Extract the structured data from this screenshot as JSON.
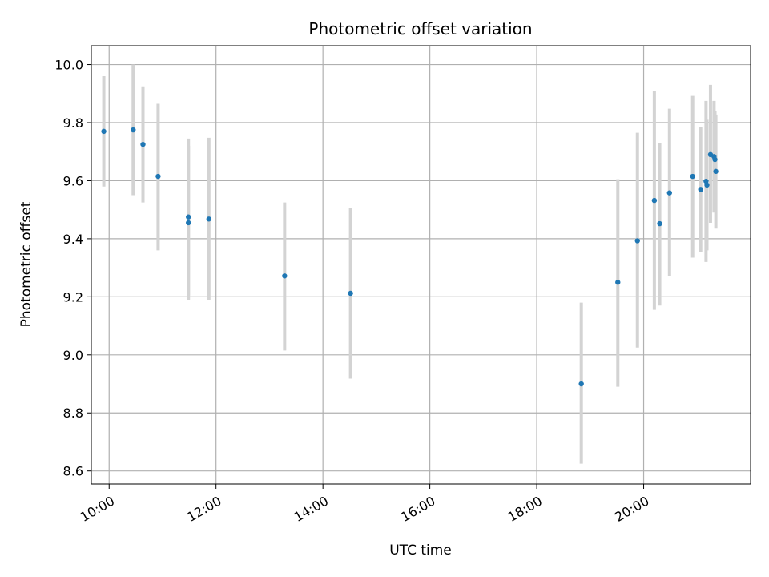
{
  "chart_data": {
    "type": "scatter",
    "title": "Photometric offset variation",
    "xlabel": "UTC time",
    "ylabel": "Photometric offset",
    "grid": true,
    "xlim": [
      "09:40",
      "22:00"
    ],
    "ylim": [
      8.555,
      10.065
    ],
    "xticks": [
      "10:00",
      "12:00",
      "14:00",
      "16:00",
      "18:00",
      "20:00"
    ],
    "yticks": [
      "8.6",
      "8.8",
      "9.0",
      "9.2",
      "9.4",
      "9.6",
      "9.8",
      "10.0"
    ],
    "colors": {
      "point": "#1f77b4",
      "errorbar": "#d3d3d3",
      "grid": "#b0b0b0"
    },
    "series": [
      {
        "points": [
          {
            "x": "09:54",
            "y": 9.77,
            "ylow": 9.58,
            "yhigh": 9.96
          },
          {
            "x": "10:27",
            "y": 9.775,
            "ylow": 9.55,
            "yhigh": 10.0
          },
          {
            "x": "10:38",
            "y": 9.725,
            "ylow": 9.525,
            "yhigh": 9.925
          },
          {
            "x": "10:55",
            "y": 9.615,
            "ylow": 9.36,
            "yhigh": 9.865
          },
          {
            "x": "11:29",
            "y": 9.475,
            "ylow": 9.205,
            "yhigh": 9.745
          },
          {
            "x": "11:29",
            "y": 9.455,
            "ylow": 9.19,
            "yhigh": 9.72
          },
          {
            "x": "11:52",
            "y": 9.468,
            "ylow": 9.19,
            "yhigh": 9.748
          },
          {
            "x": "13:17",
            "y": 9.272,
            "ylow": 9.015,
            "yhigh": 9.525
          },
          {
            "x": "14:31",
            "y": 9.212,
            "ylow": 8.918,
            "yhigh": 9.505
          },
          {
            "x": "18:50",
            "y": 8.9,
            "ylow": 8.625,
            "yhigh": 9.18
          },
          {
            "x": "19:31",
            "y": 9.25,
            "ylow": 8.89,
            "yhigh": 9.605
          },
          {
            "x": "19:53",
            "y": 9.393,
            "ylow": 9.025,
            "yhigh": 9.765
          },
          {
            "x": "20:12",
            "y": 9.532,
            "ylow": 9.155,
            "yhigh": 9.908
          },
          {
            "x": "20:18",
            "y": 9.452,
            "ylow": 9.17,
            "yhigh": 9.73
          },
          {
            "x": "20:29",
            "y": 9.558,
            "ylow": 9.27,
            "yhigh": 9.848
          },
          {
            "x": "20:55",
            "y": 9.615,
            "ylow": 9.335,
            "yhigh": 9.892
          },
          {
            "x": "21:04",
            "y": 9.57,
            "ylow": 9.355,
            "yhigh": 9.785
          },
          {
            "x": "21:10",
            "y": 9.598,
            "ylow": 9.32,
            "yhigh": 9.875
          },
          {
            "x": "21:11",
            "y": 9.585,
            "ylow": 9.36,
            "yhigh": 9.81
          },
          {
            "x": "21:15",
            "y": 9.69,
            "ylow": 9.455,
            "yhigh": 9.93
          },
          {
            "x": "21:19",
            "y": 9.683,
            "ylow": 9.49,
            "yhigh": 9.875
          },
          {
            "x": "21:20",
            "y": 9.673,
            "ylow": 9.505,
            "yhigh": 9.84
          },
          {
            "x": "21:21",
            "y": 9.632,
            "ylow": 9.435,
            "yhigh": 9.828
          }
        ]
      }
    ]
  }
}
